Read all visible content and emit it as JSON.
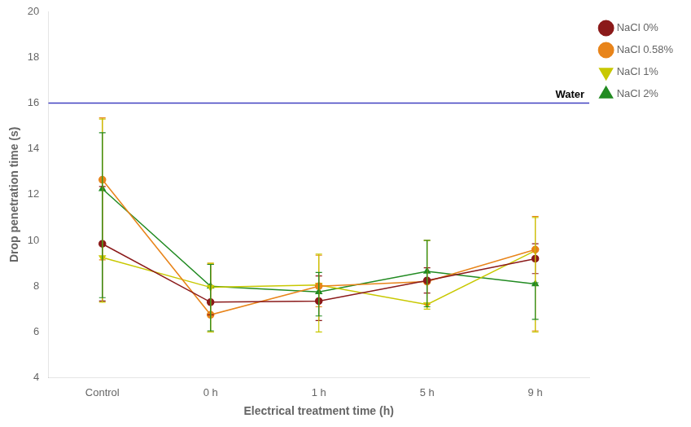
{
  "chart_data": {
    "type": "line",
    "categories": [
      "Control",
      "0 h",
      "1 h",
      "5 h",
      "9 h"
    ],
    "series": [
      {
        "name": "NaCl 0%",
        "color": "#8B1A1A",
        "marker": "circle",
        "values": [
          9.85,
          7.3,
          7.35,
          8.25,
          9.2
        ],
        "yerr_low": [
          2.5,
          0.55,
          0.85,
          0.55,
          0.65
        ],
        "yerr_high": [
          2.5,
          1.65,
          1.1,
          0.55,
          0.65
        ]
      },
      {
        "name": "NaCl 0.58%",
        "color": "#E8841A",
        "marker": "circle",
        "values": [
          12.65,
          6.75,
          8.0,
          8.2,
          9.6
        ],
        "yerr_low": [
          3.5,
          0.75,
          0.9,
          1.0,
          3.55
        ],
        "yerr_high": [
          2.7,
          2.25,
          1.35,
          1.8,
          1.45
        ]
      },
      {
        "name": "NaCl 1%",
        "color": "#C8C800",
        "marker": "triangle-down",
        "values": [
          9.25,
          7.95,
          8.05,
          7.2,
          9.55
        ],
        "yerr_low": [
          1.95,
          1.95,
          2.05,
          0.2,
          3.55
        ],
        "yerr_high": [
          6.05,
          1.05,
          1.35,
          2.8,
          1.45
        ]
      },
      {
        "name": "NaCl 2%",
        "color": "#228B22",
        "marker": "triangle-up",
        "values": [
          12.25,
          8.0,
          7.75,
          8.65,
          8.1
        ],
        "yerr_low": [
          4.75,
          1.95,
          1.05,
          1.55,
          1.55
        ],
        "yerr_high": [
          2.45,
          0.95,
          0.85,
          1.35,
          0.05
        ]
      }
    ],
    "annotations": [
      {
        "type": "hline",
        "y": 16,
        "label": "Water",
        "color": "#4040C0"
      }
    ],
    "xlabel": "Electrical treatment time (h)",
    "ylabel": "Drop penetration time (s)",
    "ylim": [
      4,
      20
    ],
    "yticks": [
      4,
      6,
      8,
      10,
      12,
      14,
      16,
      18,
      20
    ],
    "grid": false,
    "legend": "right"
  }
}
